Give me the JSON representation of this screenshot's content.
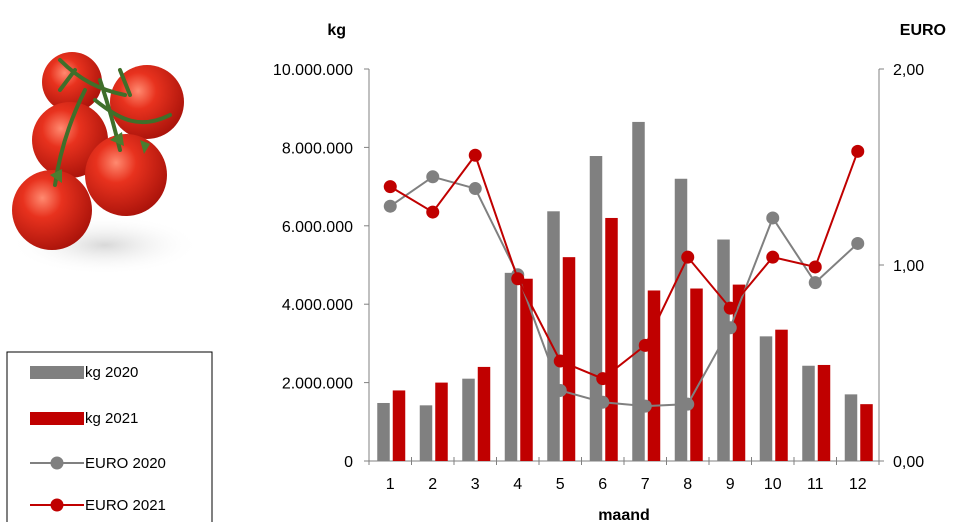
{
  "chart_data": {
    "type": "bar",
    "title": "",
    "xlabel": "maand",
    "ylabel_left": "kg",
    "ylabel_right": "EURO",
    "categories": [
      "1",
      "2",
      "3",
      "4",
      "5",
      "6",
      "7",
      "8",
      "9",
      "10",
      "11",
      "12"
    ],
    "ylim_left": [
      0,
      10000000
    ],
    "yticks_left": [
      "0",
      "2.000.000",
      "4.000.000",
      "6.000.000",
      "8.000.000",
      "10.000.000"
    ],
    "ylim_right": [
      0,
      2
    ],
    "yticks_right": [
      "0,00",
      "1,00",
      "2,00"
    ],
    "grid": false,
    "legend_position": "bottom-left",
    "series": [
      {
        "name": "kg 2020",
        "kind": "bar",
        "axis": "left",
        "color": "#808080",
        "values": [
          1480000,
          1420000,
          2100000,
          4800000,
          6370000,
          7780000,
          8650000,
          7200000,
          5650000,
          3180000,
          2430000,
          1700000
        ]
      },
      {
        "name": "kg 2021",
        "kind": "bar",
        "axis": "left",
        "color": "#c00000",
        "values": [
          1800000,
          2000000,
          2400000,
          4650000,
          5200000,
          6200000,
          4350000,
          4400000,
          4500000,
          3350000,
          2450000,
          1450000
        ]
      },
      {
        "name": "EURO 2020",
        "kind": "line",
        "axis": "right",
        "color": "#808080",
        "values": [
          1.3,
          1.45,
          1.39,
          0.95,
          0.36,
          0.3,
          0.28,
          0.29,
          0.68,
          1.24,
          0.91,
          1.11
        ]
      },
      {
        "name": "EURO 2021",
        "kind": "line",
        "axis": "right",
        "color": "#c00000",
        "values": [
          1.4,
          1.27,
          1.56,
          0.93,
          0.51,
          0.42,
          0.59,
          1.04,
          0.78,
          1.04,
          0.99,
          1.58
        ]
      }
    ]
  },
  "image": {
    "icon": "tomatoes-photo"
  }
}
